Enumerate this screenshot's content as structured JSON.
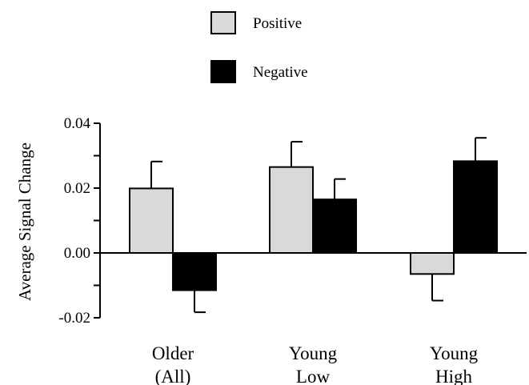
{
  "chart_data": {
    "type": "bar",
    "title": "",
    "xlabel": "",
    "ylabel": "Average Signal Change",
    "ylim": [
      -0.02,
      0.04
    ],
    "yticks": [
      "0.04",
      "0.02",
      "0.00",
      "-0.02"
    ],
    "ytick_values": [
      0.04,
      0.02,
      0.0,
      -0.02
    ],
    "categories": [
      [
        "Older",
        "(All)"
      ],
      [
        "Young",
        "Low"
      ],
      [
        "Young",
        "High"
      ]
    ],
    "series": [
      {
        "name": "Positive",
        "color": "#d9d9d9",
        "values": [
          0.0199,
          0.0265,
          -0.0065
        ],
        "errors": [
          0.0083,
          0.0078,
          0.0082
        ]
      },
      {
        "name": "Negative",
        "color": "#000000",
        "values": [
          -0.0115,
          0.0165,
          0.0283
        ],
        "errors": [
          0.0068,
          0.0063,
          0.0072
        ]
      }
    ],
    "legend": {
      "placement": "top-center"
    },
    "grid": false
  }
}
